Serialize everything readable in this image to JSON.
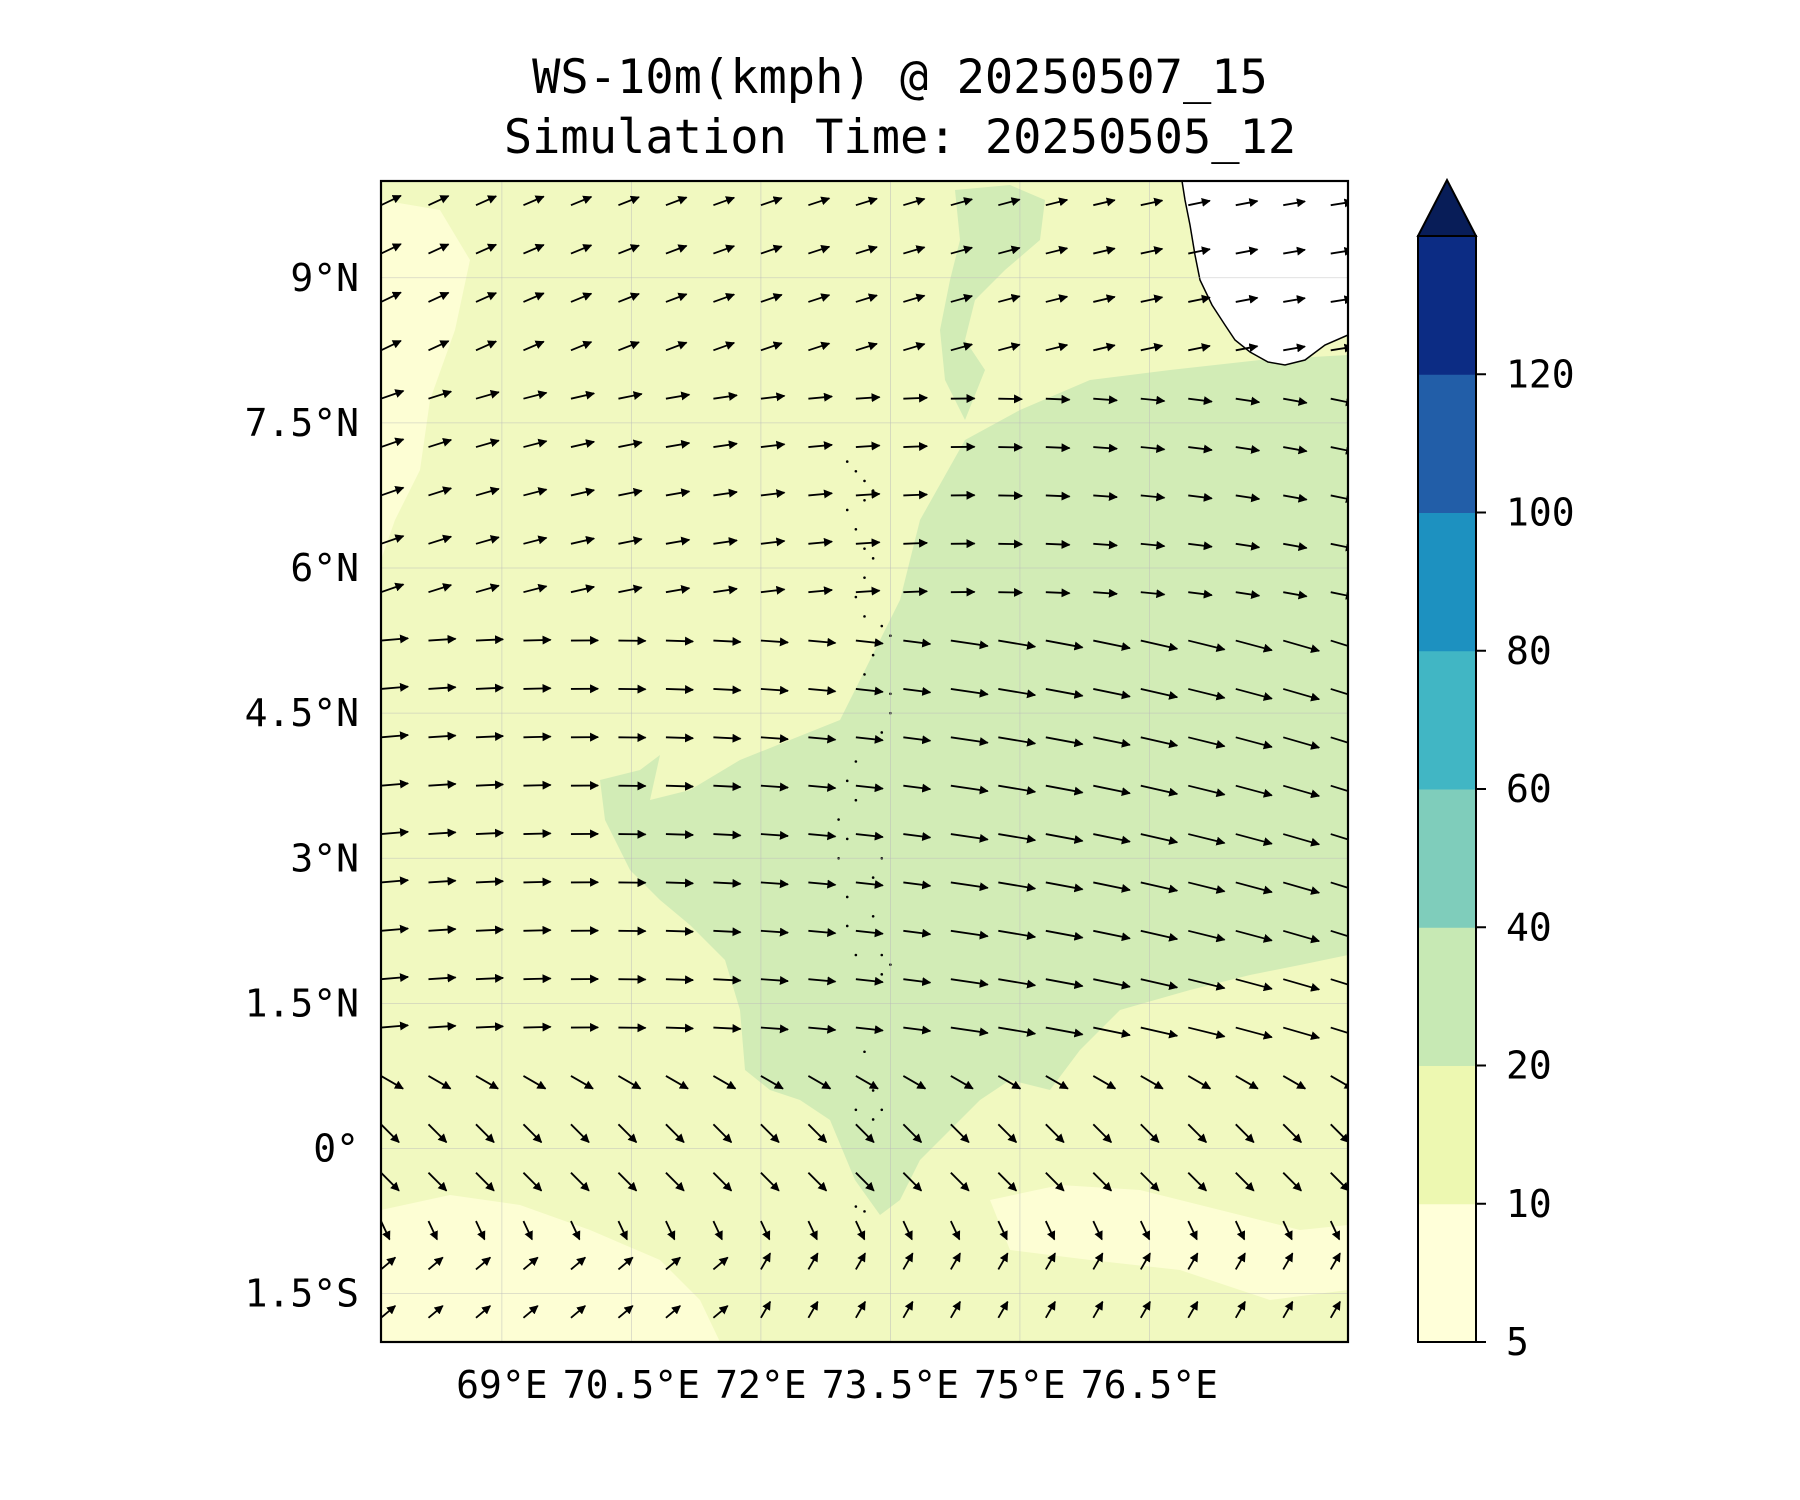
{
  "title": "WS-10m(kmph) @ 20250507_15",
  "subtitle": "Simulation Time: 20250505_12",
  "map": {
    "lon_range": [
      67.6,
      78.8
    ],
    "lat_range": [
      -2.0,
      10.0
    ],
    "lon_ticks": [
      {
        "value": 69.0,
        "label": "69°E"
      },
      {
        "value": 70.5,
        "label": "70.5°E"
      },
      {
        "value": 72.0,
        "label": "72°E"
      },
      {
        "value": 73.5,
        "label": "73.5°E"
      },
      {
        "value": 75.0,
        "label": "75°E"
      },
      {
        "value": 76.5,
        "label": "76.5°E"
      }
    ],
    "lat_ticks": [
      {
        "value": 9.0,
        "label": "9°N"
      },
      {
        "value": 7.5,
        "label": "7.5°N"
      },
      {
        "value": 6.0,
        "label": "6°N"
      },
      {
        "value": 4.5,
        "label": "4.5°N"
      },
      {
        "value": 3.0,
        "label": "3°N"
      },
      {
        "value": 1.5,
        "label": "1.5°N"
      },
      {
        "value": 0.0,
        "label": "0°"
      },
      {
        "value": -1.5,
        "label": "1.5°S"
      }
    ],
    "gridlines": true,
    "vector_grid": {
      "lon_start": 67.6,
      "lon_step": 0.55,
      "lon_count": 21,
      "lat_start": 9.75,
      "lat_step": -0.5,
      "lat_count": 25
    },
    "colors": {
      "background": "#f1f9c0",
      "low": "#fdfed4",
      "mid": "#d2ecb6",
      "land": "#ffffff",
      "vector": "#000000"
    }
  },
  "colorbar": {
    "levels": [
      5,
      10,
      20,
      40,
      60,
      80,
      100,
      120
    ],
    "labels": [
      "5",
      "10",
      "20",
      "40",
      "60",
      "80",
      "100",
      "120"
    ],
    "colors": [
      "#ffffd9",
      "#edf8b1",
      "#c7e9b4",
      "#7fcdbb",
      "#41b6c4",
      "#1d91c0",
      "#225ea8",
      "#0c2c84"
    ],
    "extend_color": "#081d58",
    "extend": "max"
  }
}
